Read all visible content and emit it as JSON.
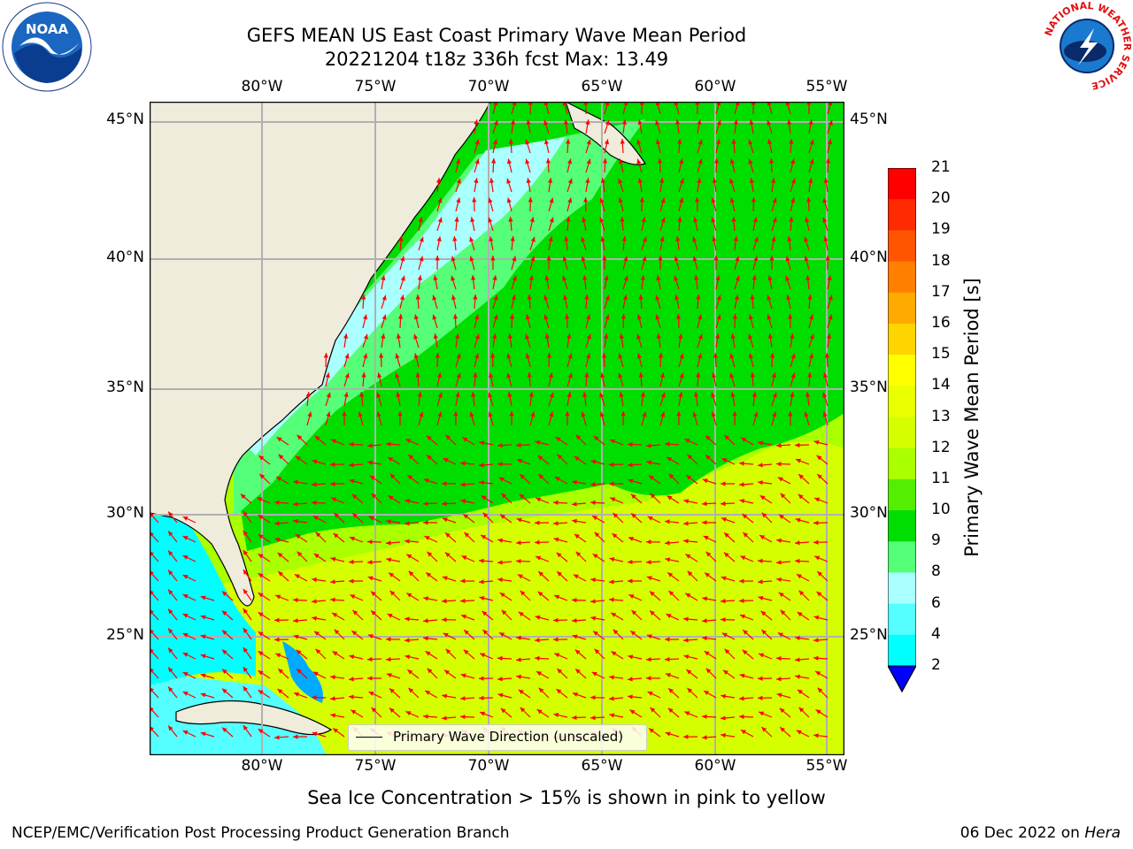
{
  "title": {
    "line1": "GEFS MEAN US East Coast Primary Wave Mean Period",
    "line2": "20221204 t18z 336h fcst   Max: 13.49"
  },
  "logos": {
    "left": {
      "text": "NOAA",
      "icon": "noaa-logo-icon"
    },
    "right": {
      "text": "NATIONAL WEATHER SERVICE",
      "icon": "nws-logo-icon"
    }
  },
  "map": {
    "lon_ticks": [
      "80°W",
      "75°W",
      "70°W",
      "65°W",
      "60°W",
      "55°W"
    ],
    "lat_ticks": [
      "45°N",
      "40°N",
      "35°N",
      "30°N",
      "25°N"
    ],
    "lon_range": [
      -85,
      -54.3
    ],
    "lat_range": [
      20.5,
      46
    ],
    "legend_label": "Primary Wave Direction (unscaled)",
    "arrow_color": "#ff0000",
    "land_color": "#efecdc"
  },
  "colorbar": {
    "label": "Primary Wave Mean Period [s]",
    "levels": [
      "21",
      "20",
      "19",
      "18",
      "17",
      "16",
      "15",
      "14",
      "13",
      "12",
      "11",
      "10",
      "9",
      "8",
      "6",
      "4",
      "2"
    ],
    "colors": [
      "#ff0000",
      "#ff2a00",
      "#ff5500",
      "#ff7f00",
      "#ffaa00",
      "#ffd500",
      "#ffff00",
      "#eaff00",
      "#d5ff00",
      "#aaff00",
      "#55ee00",
      "#00dd00",
      "#55ff77",
      "#aaffff",
      "#55ffff",
      "#00ffff",
      "#00aaff",
      "#0055ff",
      "#0000ff"
    ],
    "extend_color": "#0000ff"
  },
  "subtitle": "Sea Ice Concentration > 15% is shown in pink to yellow",
  "footer": {
    "left": "NCEP/EMC/Verification Post Processing Product Generation Branch",
    "right_date": "06 Dec 2022 on ",
    "right_machine": "Hera"
  }
}
